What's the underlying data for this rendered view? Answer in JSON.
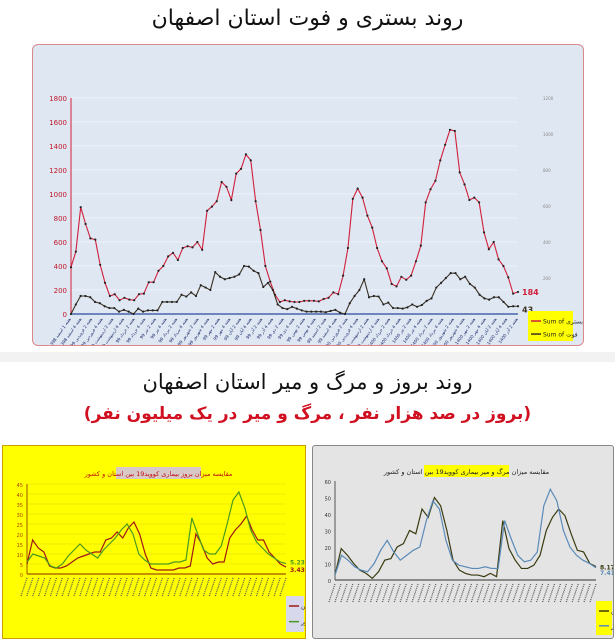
{
  "titles": {
    "top": "روند بستری و فوت استان اصفهان",
    "bottom": "روند بروز و مرگ و میر استان اصفهان",
    "bottom_sub": "(بروز در صد هزار نفر ، مرگ و میر در یک میلیون نفر)"
  },
  "chart_data": [
    {
      "type": "line",
      "title": "روند بستری و فوت استان اصفهان",
      "ylim": [
        0,
        1800
      ],
      "yticks": [
        0,
        200,
        400,
        600,
        800,
        1000,
        1200,
        1400,
        1600,
        1800
      ],
      "y2lim": [
        0,
        1200
      ],
      "y2ticks": [
        0,
        200,
        400,
        600,
        800,
        1000,
        1200
      ],
      "grid": true,
      "legend_position": "bottom-right",
      "xtick_labels": [
        "هفته 1 اسفند 1398",
        "هفته 4 اسفند 1398",
        "هفته 2 فروردین 99",
        "هفته 4 فروردین 99",
        "هفته 2 اردیبهشت 99",
        "هفته 4 اردیبهشت 99",
        "هفته 2 خرداد 99",
        "هفته 4 خرداد 99",
        "هفته 2 تیر 99",
        "هفته 4 تیر 99",
        "هفته 2 مرداد 99",
        "هفته 4 مرداد 99",
        "هفته 2 شهریور 99",
        "هفته 4 شهریور 99",
        "هفته 2 مهر 99",
        "هفته 4 مهر 99",
        "هفته 2 آبان 99",
        "هفته 4 آبان 99",
        "هفته 2 آذر 99",
        "هفته 4 آذر 99",
        "هفته 2 دی 99",
        "هفته 4 دی 99",
        "هفته 2 بهمن 99",
        "هفته 4 بهمن 99",
        "هفته 2 اسفند 99",
        "هفته 4 اسفند 99",
        "هفته 2 فروردین 1400",
        "هفته 4 فروردین 1400",
        "هفته 2 اردیبهشت 1400",
        "هفته 4 اردیبهشت 1400",
        "هفته 2 خرداد 1400",
        "هفته 4 خرداد 1400",
        "هفته 2 تیر 1400",
        "هفته 4 تیر 1400",
        "هفته 2 مرداد 1400",
        "هفته 4 مرداد 1400",
        "هفته 2 شهریور 1400",
        "هفته 4 شهریور 1400",
        "هفته 2 مهر 1400",
        "هفته 4 مهر 1400",
        "هفته 2 آبان 1400",
        "هفته 4 آبان 1400",
        "هفته 2 آذر 1400"
      ],
      "series": [
        {
          "name": "Sum of بستری",
          "color": "#d0203a",
          "axis": "left",
          "end_label": "184",
          "values": [
            390,
            520,
            890,
            750,
            630,
            620,
            410,
            260,
            150,
            165,
            115,
            135,
            120,
            115,
            165,
            170,
            265,
            265,
            360,
            400,
            480,
            510,
            450,
            550,
            565,
            555,
            600,
            535,
            860,
            895,
            940,
            1100,
            1060,
            950,
            1170,
            1210,
            1330,
            1280,
            940,
            700,
            400,
            270,
            160,
            100,
            115,
            105,
            100,
            100,
            110,
            110,
            110,
            105,
            125,
            135,
            180,
            165,
            320,
            550,
            960,
            1045,
            970,
            820,
            720,
            550,
            440,
            380,
            250,
            230,
            310,
            285,
            320,
            440,
            570,
            930,
            1040,
            1110,
            1280,
            1410,
            1535,
            1525,
            1180,
            1080,
            950,
            970,
            930,
            680,
            540,
            600,
            455,
            400,
            305,
            170,
            184
          ]
        },
        {
          "name": "Sum of فوت",
          "color": "#3a3020",
          "axis": "right",
          "end_label": "43",
          "values": [
            0,
            53,
            100,
            100,
            93,
            67,
            60,
            43,
            33,
            33,
            13,
            23,
            13,
            0,
            30,
            13,
            20,
            20,
            20,
            67,
            67,
            67,
            67,
            107,
            97,
            120,
            100,
            160,
            147,
            133,
            233,
            207,
            193,
            200,
            207,
            220,
            267,
            263,
            240,
            227,
            150,
            173,
            133,
            53,
            33,
            27,
            40,
            30,
            20,
            13,
            13,
            13,
            13,
            10,
            17,
            23,
            7,
            0,
            60,
            100,
            133,
            193,
            93,
            100,
            97,
            53,
            63,
            33,
            33,
            30,
            37,
            53,
            40,
            50,
            73,
            87,
            147,
            173,
            200,
            227,
            227,
            193,
            207,
            167,
            147,
            107,
            87,
            80,
            93,
            93,
            67,
            40,
            43,
            43
          ]
        }
      ]
    },
    {
      "type": "line",
      "title": "مقایسه میزان بروز بیماری کووید19 بین استان و کشور",
      "ylim": [
        0,
        45
      ],
      "yticks": [
        0,
        5,
        10,
        15,
        20,
        25,
        30,
        35,
        40,
        45
      ],
      "grid": true,
      "legend_position": "bottom-right",
      "series": [
        {
          "name": "اصفهان",
          "color": "#a01818",
          "end_label": "3.43",
          "values": [
            5,
            17,
            13,
            11,
            4,
            3,
            3,
            4,
            6,
            8,
            9,
            10,
            11,
            11,
            17,
            18,
            21,
            18,
            23,
            26,
            20,
            10,
            3,
            2,
            2,
            2,
            2,
            3,
            3,
            4,
            20,
            15,
            8,
            5,
            6,
            6,
            18,
            22,
            25,
            29,
            22,
            17,
            17,
            11,
            8,
            5,
            3.43
          ]
        },
        {
          "name": "کل کشور",
          "color": "#4a9a20",
          "end_label": "5.23",
          "values": [
            6,
            10,
            9,
            8,
            4,
            3,
            5,
            9,
            12,
            15,
            12,
            10,
            8,
            12,
            15,
            18,
            22,
            25,
            20,
            10,
            7,
            5,
            5,
            5,
            5,
            6,
            6,
            7,
            28,
            20,
            12,
            10,
            10,
            14,
            25,
            37,
            41,
            33,
            22,
            16,
            13,
            10,
            8,
            6,
            5.23
          ]
        }
      ]
    },
    {
      "type": "line",
      "title": "مقایسه میزان مرگ و میر بیماری کووید19 بین استان و کشور",
      "ylim": [
        0,
        60
      ],
      "yticks": [
        0,
        10,
        20,
        30,
        40,
        50,
        60
      ],
      "grid": false,
      "legend_position": "bottom-right",
      "series": [
        {
          "name": "اصفهان",
          "color": "#3a3a10",
          "end_label": "8.17",
          "values": [
            3,
            19,
            15,
            10,
            6,
            4,
            1,
            5,
            12,
            13,
            20,
            22,
            30,
            28,
            43,
            38,
            50,
            45,
            30,
            12,
            6,
            4,
            3,
            3,
            2,
            4,
            2,
            36,
            19,
            12,
            7,
            7,
            9,
            15,
            30,
            38,
            43,
            39,
            28,
            18,
            17,
            10,
            8.17
          ]
        },
        {
          "name": "کل کشور",
          "color": "#5a8ab8",
          "end_label": "7.41",
          "values": [
            3,
            15,
            12,
            8,
            6,
            5,
            10,
            18,
            24,
            17,
            12,
            15,
            18,
            20,
            36,
            48,
            43,
            24,
            12,
            9,
            8,
            7,
            7,
            8,
            7,
            7,
            36,
            25,
            15,
            11,
            12,
            17,
            45,
            55,
            48,
            30,
            20,
            15,
            12,
            10,
            7.41
          ]
        }
      ]
    }
  ]
}
